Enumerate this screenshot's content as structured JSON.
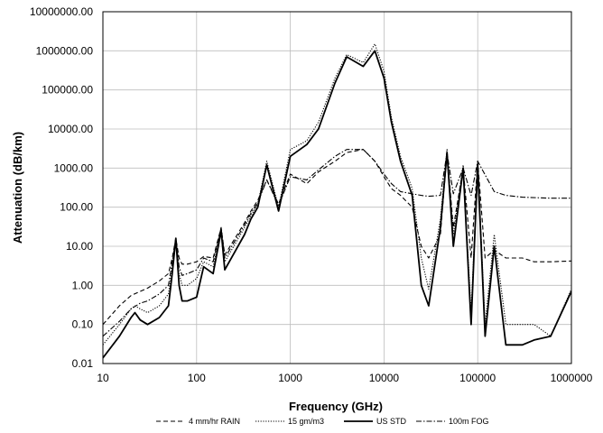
{
  "chart_data": {
    "type": "line",
    "title": "",
    "xlabel": "Frequency (GHz)",
    "ylabel": "Attenuation (dB/km)",
    "x_scale": "log",
    "y_scale": "log",
    "xlim": [
      10,
      1000000
    ],
    "ylim": [
      0.01,
      10000000
    ],
    "grid": true,
    "legend_position": "bottom",
    "x_tick_labels": [
      "10",
      "100",
      "1000",
      "10000",
      "100000",
      "1000000"
    ],
    "y_tick_labels": [
      "0.01",
      "0.10",
      "1.00",
      "10.00",
      "100.00",
      "1000.00",
      "10000.00",
      "100000.00",
      "1000000.00",
      "10000000.00"
    ],
    "series": [
      {
        "name": "4 mm/hr RAIN",
        "style": "dashed",
        "x": [
          10,
          15,
          20,
          25,
          30,
          40,
          50,
          55,
          60,
          65,
          70,
          80,
          100,
          119,
          150,
          183,
          200,
          325,
          380,
          450,
          560,
          750,
          1000,
          1500,
          2000,
          3000,
          4000,
          6000,
          8000,
          10000,
          12000,
          15000,
          20000,
          25000,
          30000,
          40000,
          47000,
          55000,
          70000,
          85000,
          100000,
          120000,
          150000,
          200000,
          300000,
          400000,
          600000,
          1000000
        ],
        "y": [
          0.1,
          0.3,
          0.55,
          0.7,
          0.85,
          1.3,
          2.0,
          5.0,
          16.0,
          5.0,
          3.5,
          3.5,
          4.0,
          5.5,
          5.0,
          30.0,
          6.0,
          40.0,
          80.0,
          150.0,
          500.0,
          120.0,
          700.0,
          400.0,
          800.0,
          1500.0,
          2500.0,
          3000.0,
          1500.0,
          600.0,
          300.0,
          200.0,
          100.0,
          10.0,
          5.0,
          20.0,
          2500.0,
          30.0,
          1000.0,
          5.0,
          1500.0,
          5.0,
          8.0,
          5.0,
          5.0,
          4.0,
          4.0,
          4.2
        ]
      },
      {
        "name": "15 gm/m3",
        "style": "dotted",
        "x": [
          10,
          15,
          20,
          22,
          25,
          30,
          40,
          50,
          55,
          60,
          65,
          70,
          80,
          100,
          119,
          150,
          183,
          200,
          325,
          380,
          450,
          560,
          750,
          1000,
          1500,
          2000,
          3000,
          4000,
          6000,
          8000,
          10000,
          12000,
          15000,
          20000,
          25000,
          30000,
          40000,
          47000,
          55000,
          70000,
          85000,
          100000,
          120000,
          150000,
          200000,
          300000,
          400000,
          600000,
          1000000
        ],
        "y": [
          0.03,
          0.1,
          0.25,
          0.3,
          0.25,
          0.2,
          0.3,
          0.6,
          3.0,
          16.0,
          2.0,
          1.0,
          1.0,
          1.5,
          4.0,
          3.0,
          28.0,
          4.0,
          30.0,
          60.0,
          120.0,
          1500.0,
          100.0,
          3000.0,
          5000.0,
          15000.0,
          200000.0,
          800000.0,
          500000.0,
          1500000.0,
          300000.0,
          20000.0,
          2000.0,
          300.0,
          5.0,
          0.8,
          50.0,
          3000.0,
          20.0,
          1200.0,
          0.2,
          1500.0,
          0.1,
          20.0,
          0.1,
          0.1,
          0.1,
          0.05,
          0.8
        ]
      },
      {
        "name": "US STD",
        "style": "solid",
        "x": [
          10,
          15,
          20,
          22,
          25,
          30,
          40,
          50,
          55,
          60,
          65,
          70,
          80,
          100,
          119,
          150,
          183,
          200,
          325,
          380,
          450,
          560,
          750,
          1000,
          1500,
          2000,
          3000,
          4000,
          6000,
          8000,
          10000,
          12000,
          15000,
          20000,
          25000,
          30000,
          40000,
          47000,
          55000,
          70000,
          85000,
          100000,
          120000,
          150000,
          200000,
          300000,
          400000,
          600000,
          1000000
        ],
        "y": [
          0.014,
          0.05,
          0.15,
          0.2,
          0.13,
          0.1,
          0.15,
          0.3,
          2.0,
          16.0,
          1.0,
          0.4,
          0.4,
          0.5,
          3.0,
          2.0,
          25.0,
          2.5,
          20.0,
          50.0,
          100.0,
          1200.0,
          80.0,
          2000.0,
          4000.0,
          10000.0,
          150000.0,
          700000.0,
          400000.0,
          1000000.0,
          200000.0,
          15000.0,
          1500.0,
          200.0,
          1.0,
          0.3,
          30.0,
          2500.0,
          10.0,
          1000.0,
          0.1,
          1200.0,
          0.05,
          10.0,
          0.03,
          0.03,
          0.04,
          0.05,
          0.7
        ]
      },
      {
        "name": "100m FOG",
        "style": "dashdot",
        "x": [
          10,
          15,
          20,
          25,
          30,
          40,
          50,
          55,
          60,
          65,
          70,
          80,
          100,
          119,
          150,
          183,
          200,
          325,
          380,
          450,
          560,
          750,
          1000,
          1500,
          2000,
          3000,
          4000,
          6000,
          8000,
          10000,
          12000,
          15000,
          20000,
          25000,
          30000,
          40000,
          47000,
          55000,
          70000,
          85000,
          100000,
          150000,
          200000,
          300000,
          600000,
          1000000
        ],
        "y": [
          0.05,
          0.12,
          0.25,
          0.35,
          0.4,
          0.6,
          1.0,
          4.0,
          16.0,
          3.0,
          1.8,
          2.0,
          2.5,
          5.0,
          4.0,
          30.0,
          5.0,
          35.0,
          70.0,
          130.0,
          500.0,
          110.0,
          600.0,
          500.0,
          900.0,
          2000.0,
          3000.0,
          3000.0,
          1500.0,
          700.0,
          400.0,
          250.0,
          220.0,
          200.0,
          190.0,
          200.0,
          2500.0,
          220.0,
          1000.0,
          200.0,
          1500.0,
          250.0,
          200.0,
          180.0,
          170.0,
          170.0
        ]
      }
    ]
  }
}
